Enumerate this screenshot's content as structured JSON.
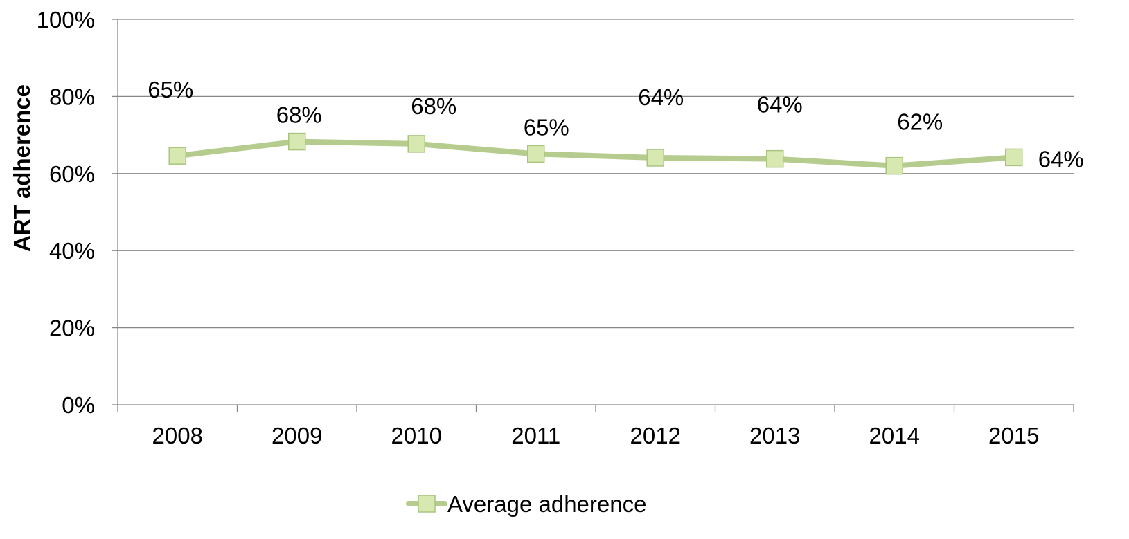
{
  "chart_data": {
    "type": "line",
    "title": "",
    "xlabel": "",
    "ylabel": "ART adherence",
    "categories": [
      "2008",
      "2009",
      "2010",
      "2011",
      "2012",
      "2013",
      "2014",
      "2015"
    ],
    "series": [
      {
        "name": "Average adherence",
        "values": [
          64.6,
          68.3,
          67.7,
          65.1,
          64.1,
          63.8,
          62.0,
          64.2
        ],
        "data_labels": [
          "65%",
          "68%",
          "68%",
          "65%",
          "64%",
          "64%",
          "62%",
          "64%"
        ],
        "color": "#b5cc8e",
        "marker_fill": "#d7e9b0",
        "marker_stroke": "#a9c47f"
      }
    ],
    "y_ticks": [
      0,
      20,
      40,
      60,
      80,
      100
    ],
    "y_tick_labels": [
      "0%",
      "20%",
      "40%",
      "60%",
      "80%",
      "100%"
    ],
    "ylim": [
      0,
      100
    ],
    "grid": true,
    "legend_position": "bottom"
  }
}
